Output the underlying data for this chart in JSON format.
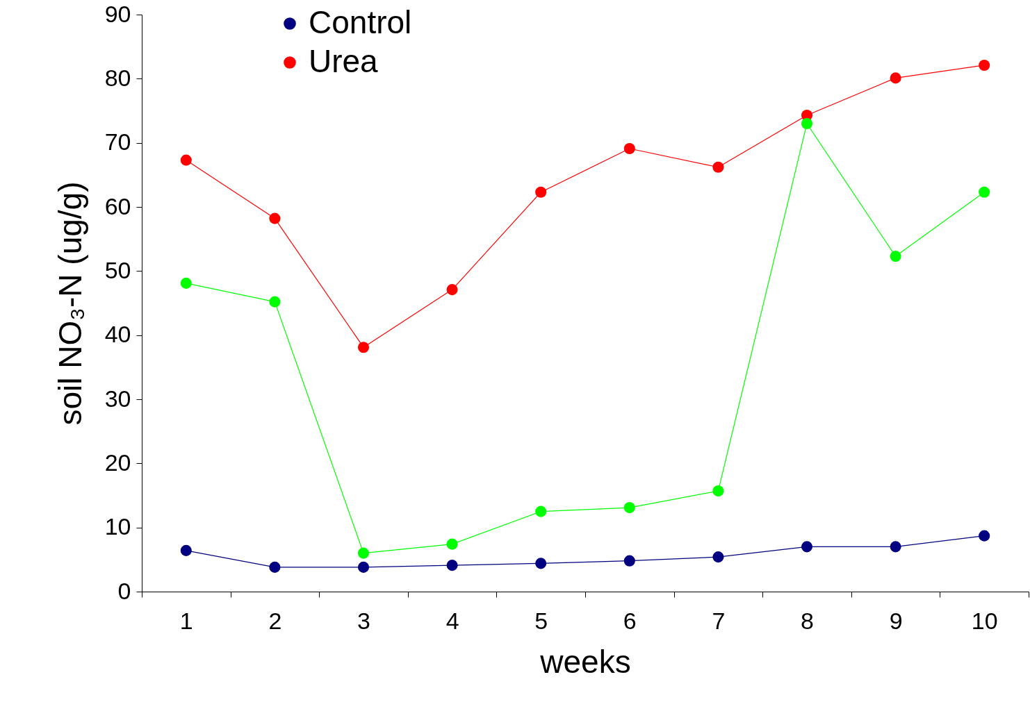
{
  "chart_data": {
    "type": "line",
    "xlabel": "weeks",
    "ylabel": "soil NO₃-N (ug/g)",
    "categories": [
      "1",
      "2",
      "3",
      "4",
      "5",
      "6",
      "7",
      "8",
      "9",
      "10"
    ],
    "series": [
      {
        "name": "Control",
        "color": "#000080",
        "values": [
          6.4,
          3.8,
          3.8,
          4.1,
          4.4,
          4.8,
          5.4,
          7.0,
          7.0,
          8.7
        ]
      },
      {
        "name": "Urea",
        "color": "#ff0000",
        "values": [
          67.3,
          58.2,
          38.1,
          47.1,
          62.3,
          69.1,
          66.2,
          74.3,
          80.1,
          82.1
        ]
      },
      {
        "color": "#00ff00",
        "values": [
          48.1,
          45.2,
          6.0,
          7.4,
          12.5,
          13.1,
          15.7,
          73.0,
          52.3,
          62.3
        ]
      }
    ],
    "ylim": [
      0,
      90
    ],
    "yticks": [
      0,
      10,
      20,
      30,
      40,
      50,
      60,
      70,
      80,
      90
    ],
    "grid": false,
    "legend": "top left",
    "marker": "circle",
    "line_style": "solid"
  }
}
